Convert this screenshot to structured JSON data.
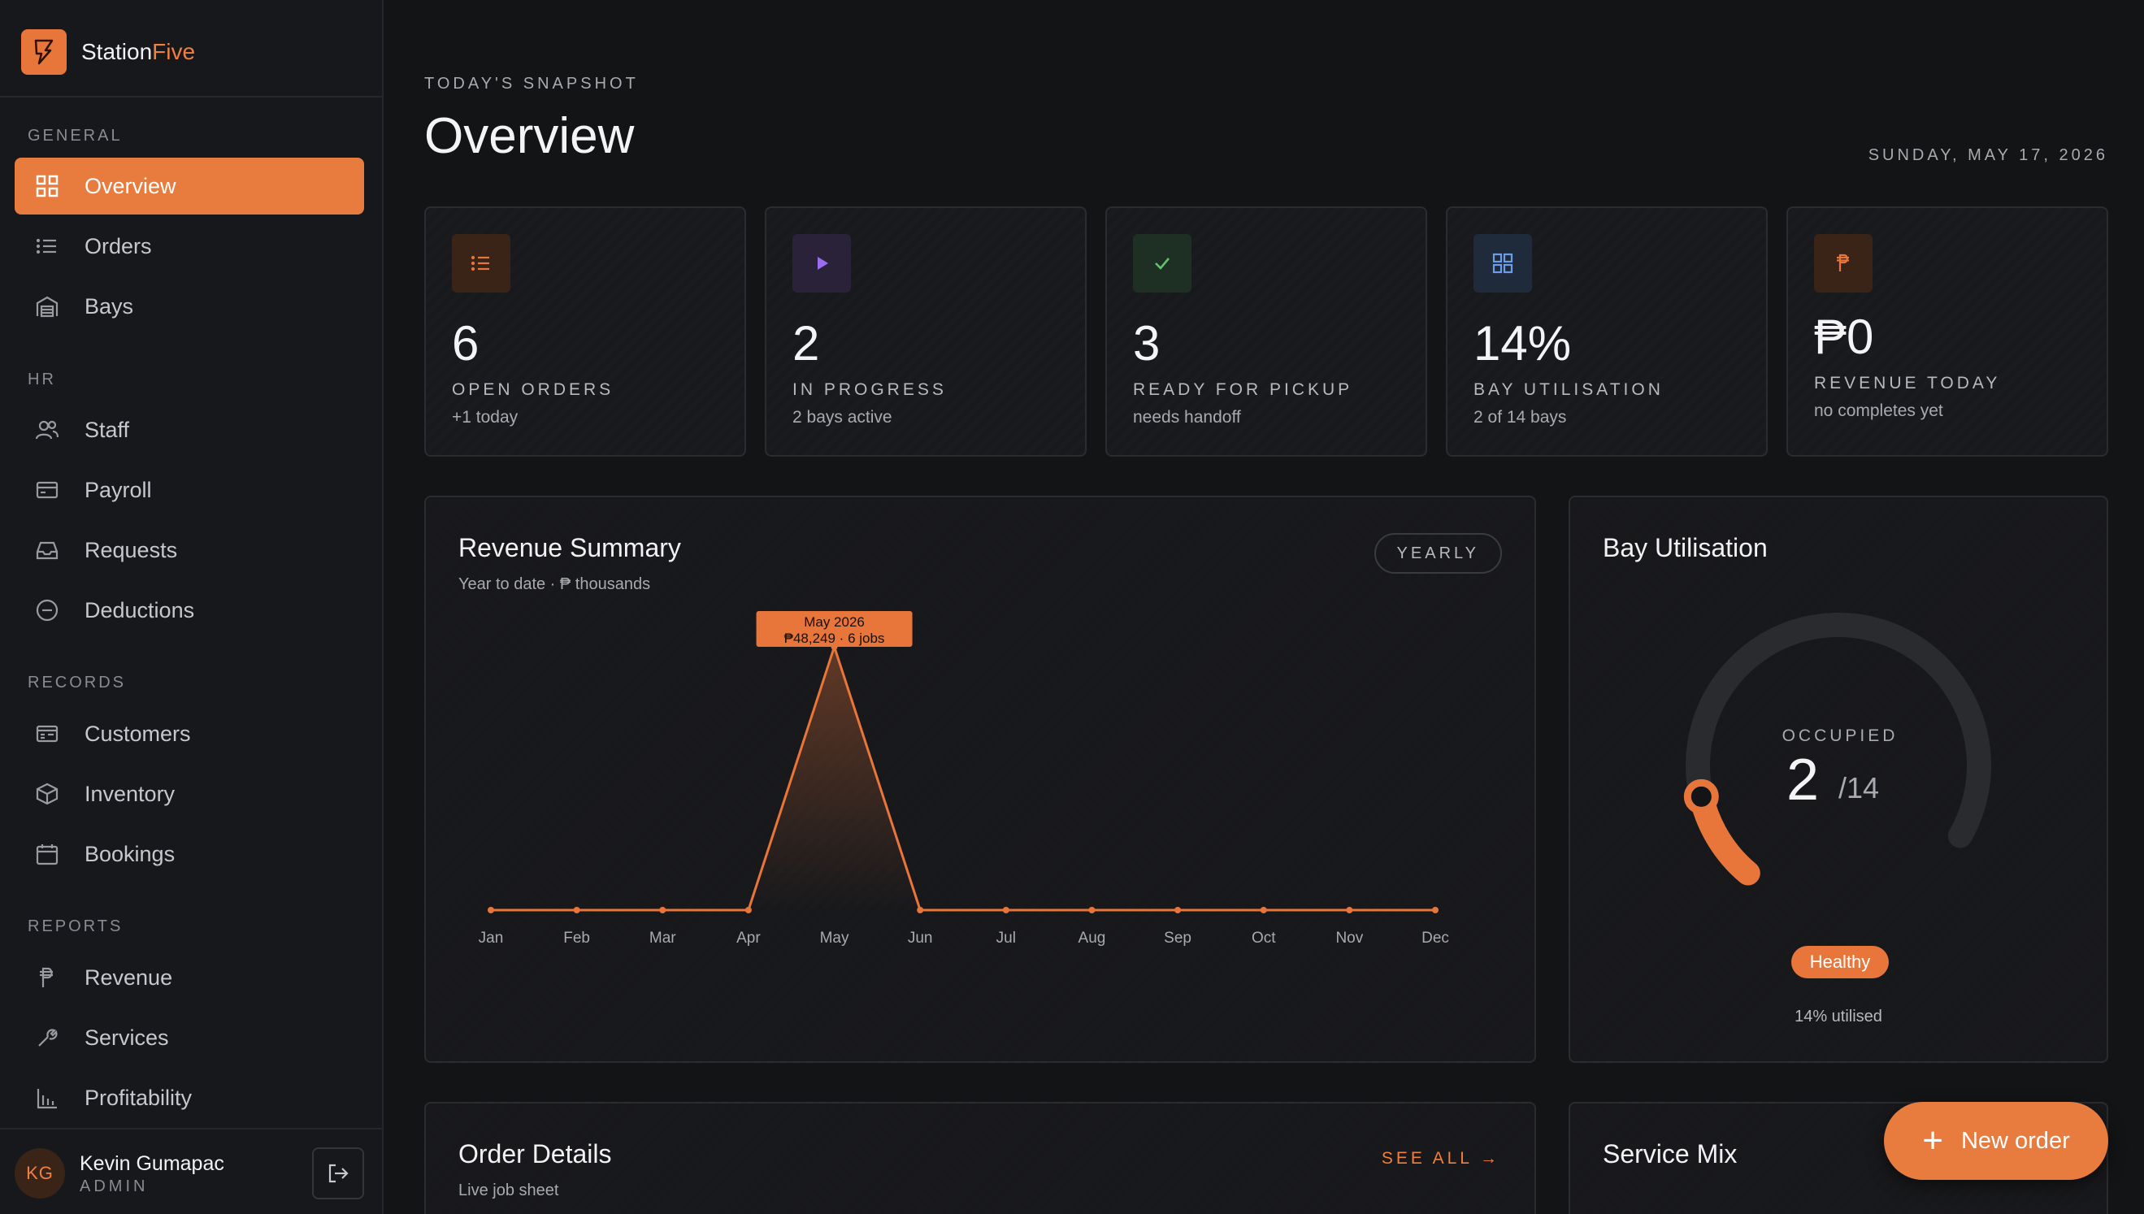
{
  "brand": {
    "name_prefix": "Station",
    "name_accent": "Five"
  },
  "sidebar": {
    "sections": [
      {
        "label": "GENERAL"
      },
      {
        "label": "HR"
      },
      {
        "label": "RECORDS"
      },
      {
        "label": "REPORTS"
      }
    ],
    "items": [
      {
        "label": "Overview",
        "icon": "grid-icon",
        "active": true
      },
      {
        "label": "Orders",
        "icon": "list-icon"
      },
      {
        "label": "Bays",
        "icon": "garage-icon"
      },
      {
        "label": "Staff",
        "icon": "users-icon"
      },
      {
        "label": "Payroll",
        "icon": "card-icon"
      },
      {
        "label": "Requests",
        "icon": "inbox-icon"
      },
      {
        "label": "Deductions",
        "icon": "minus-circle-icon"
      },
      {
        "label": "Customers",
        "icon": "id-card-icon"
      },
      {
        "label": "Inventory",
        "icon": "box-icon"
      },
      {
        "label": "Bookings",
        "icon": "calendar-icon"
      },
      {
        "label": "Revenue",
        "icon": "peso-icon"
      },
      {
        "label": "Services",
        "icon": "wrench-icon"
      },
      {
        "label": "Profitability",
        "icon": "bar-chart-icon"
      }
    ],
    "user": {
      "initials": "KG",
      "name": "Kevin Gumapac",
      "role": "ADMIN"
    }
  },
  "header": {
    "eyebrow": "TODAY'S SNAPSHOT",
    "title": "Overview",
    "date": "SUNDAY, MAY 17, 2026"
  },
  "stats": [
    {
      "value": "6",
      "label": "OPEN ORDERS",
      "sub": "+1 today",
      "icon": "list-icon",
      "color": "#e8763a"
    },
    {
      "value": "2",
      "label": "IN PROGRESS",
      "sub": "2 bays active",
      "icon": "play-icon",
      "color": "#9b6cf0"
    },
    {
      "value": "3",
      "label": "READY FOR PICKUP",
      "sub": "needs handoff",
      "icon": "check-icon",
      "color": "#5fc46a"
    },
    {
      "value": "14%",
      "label": "BAY UTILISATION",
      "sub": "2 of 14 bays",
      "icon": "grid-icon",
      "color": "#6b9de8"
    },
    {
      "value": "₱0",
      "label": "REVENUE TODAY",
      "sub": "no completes yet",
      "icon": "peso-icon",
      "color": "#e8763a"
    }
  ],
  "revenue": {
    "title": "Revenue Summary",
    "subtitle": "Year to date · ₱ thousands",
    "range_button": "YEARLY",
    "tooltip": {
      "line1": "May 2026",
      "line2": "₱48,249 · 6 jobs"
    }
  },
  "chart_data": {
    "type": "area",
    "title": "Revenue Summary",
    "subtitle": "Year to date · ₱ thousands",
    "categories": [
      "Jan",
      "Feb",
      "Mar",
      "Apr",
      "May",
      "Jun",
      "Jul",
      "Aug",
      "Sep",
      "Oct",
      "Nov",
      "Dec"
    ],
    "values": [
      0,
      0,
      0,
      0,
      48.249,
      0,
      0,
      0,
      0,
      0,
      0,
      0
    ],
    "color": "#e8763a"
  },
  "bay": {
    "title": "Bay Utilisation",
    "occupied_label": "OCCUPIED",
    "occupied": "2",
    "total": "/14",
    "fraction": 0.143,
    "status": "Healthy",
    "utilised_text": "14% utilised"
  },
  "orders": {
    "title": "Order Details",
    "subtitle": "Live job sheet",
    "see_all": "SEE ALL →"
  },
  "service_mix": {
    "title": "Service Mix"
  },
  "fab": {
    "label": "New order"
  }
}
